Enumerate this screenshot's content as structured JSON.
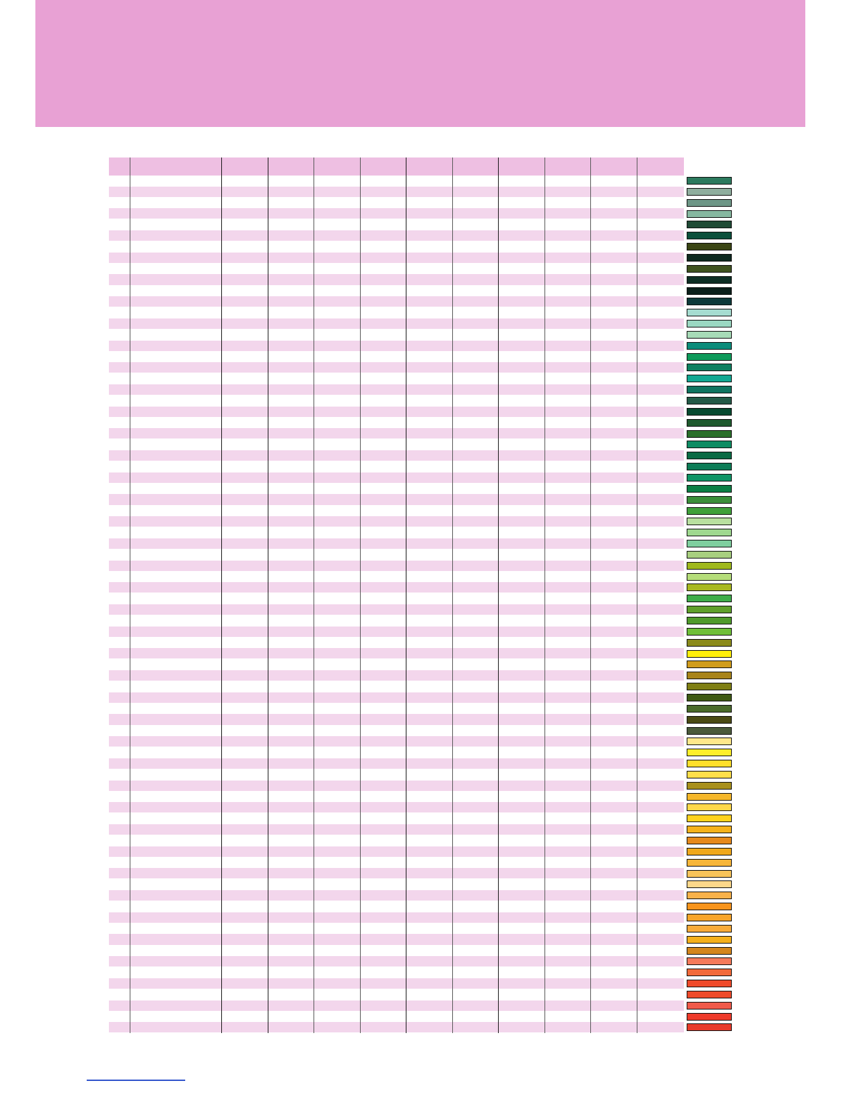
{
  "colors": {
    "banner": "#e8a1d4",
    "header_row": "#eebfe2",
    "stripe": "#f3d6ec",
    "footer_link": "#3355cc"
  },
  "swatches": [
    "#2c7a5e",
    "#8fae9e",
    "#6e9787",
    "#86b8a0",
    "#1f4a35",
    "#0b4f3b",
    "#3a4514",
    "#0e2a20",
    "#3f521f",
    "#0d2e24",
    "#0b1f1a",
    "#0d3a3a",
    "#a6dcd0",
    "#9bd8c2",
    "#a7dbb7",
    "#0c8c7a",
    "#0e9a5a",
    "#0d8060",
    "#11a892",
    "#0f7460",
    "#235a47",
    "#074a30",
    "#1f5a2e",
    "#2a6f2a",
    "#0e8c63",
    "#0a6b45",
    "#0d7c56",
    "#0f9466",
    "#0c7f45",
    "#3b8f3a",
    "#3fa03a",
    "#b9e0a0",
    "#9fd88f",
    "#7fcf9f",
    "#a8cf7f",
    "#9fb81c",
    "#b5dd7a",
    "#a8b821",
    "#3fad4a",
    "#5fa02a",
    "#4f9a2a",
    "#6fbf38",
    "#8a8a1c",
    "#ffef0a",
    "#d09c1c",
    "#a8841a",
    "#7f7f14",
    "#3f5a14",
    "#4a6a2a",
    "#4a4a14",
    "#4a5a3a",
    "#ffe88a",
    "#ffef2a",
    "#ffdf2a",
    "#ffdf4a",
    "#a8901c",
    "#f5b72a",
    "#ffd84a",
    "#ffd21f",
    "#f5b21c",
    "#e6891c",
    "#f0a81c",
    "#f7b63a",
    "#f8c45a",
    "#fdd88a",
    "#f8b24a",
    "#f8941c",
    "#f8a52a",
    "#f8ab3a",
    "#f5b01c",
    "#d4861c",
    "#f57a5a",
    "#f26a3a",
    "#ef4a2a",
    "#ee4a2a",
    "#f05a4a",
    "#ee3a2a",
    "#e83a2a"
  ],
  "grid": {
    "row_count": 78,
    "column_count": 12,
    "heavy_separators": [
      1,
      2,
      7
    ]
  }
}
